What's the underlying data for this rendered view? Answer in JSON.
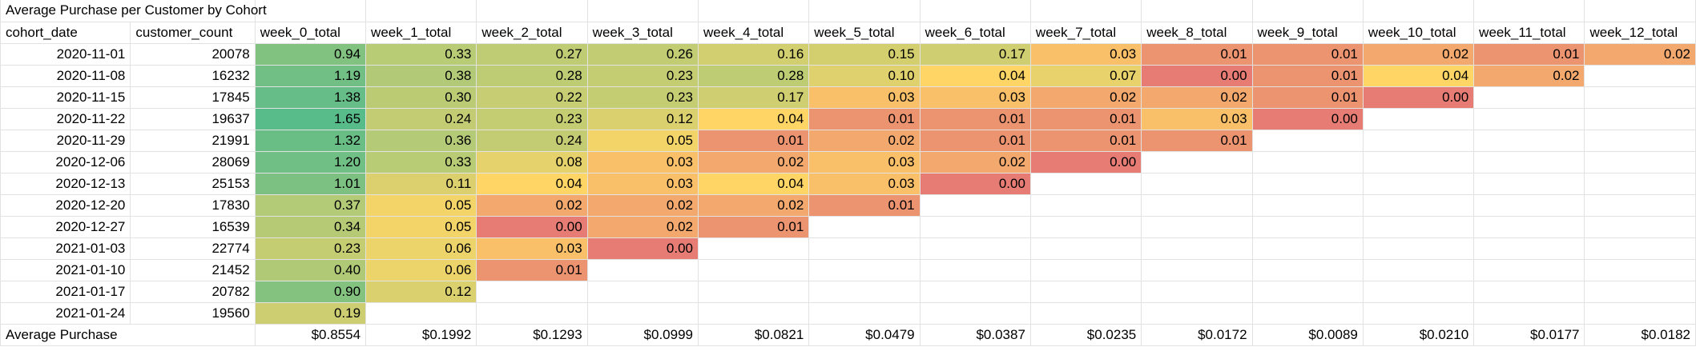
{
  "title": "Average Purchase per Customer by Cohort",
  "columns": [
    "cohort_date",
    "customer_count",
    "week_0_total",
    "week_1_total",
    "week_2_total",
    "week_3_total",
    "week_4_total",
    "week_5_total",
    "week_6_total",
    "week_7_total",
    "week_8_total",
    "week_9_total",
    "week_10_total",
    "week_11_total",
    "week_12_total"
  ],
  "rows": [
    {
      "cohort_date": "2020-11-01",
      "customer_count": "20078",
      "weeks": [
        "0.94",
        "0.33",
        "0.27",
        "0.26",
        "0.16",
        "0.15",
        "0.17",
        "0.03",
        "0.01",
        "0.01",
        "0.02",
        "0.01",
        "0.02"
      ]
    },
    {
      "cohort_date": "2020-11-08",
      "customer_count": "16232",
      "weeks": [
        "1.19",
        "0.38",
        "0.28",
        "0.23",
        "0.28",
        "0.10",
        "0.04",
        "0.07",
        "0.00",
        "0.01",
        "0.04",
        "0.02"
      ]
    },
    {
      "cohort_date": "2020-11-15",
      "customer_count": "17845",
      "weeks": [
        "1.38",
        "0.30",
        "0.22",
        "0.23",
        "0.17",
        "0.03",
        "0.03",
        "0.02",
        "0.02",
        "0.01",
        "0.00"
      ]
    },
    {
      "cohort_date": "2020-11-22",
      "customer_count": "19637",
      "weeks": [
        "1.65",
        "0.24",
        "0.23",
        "0.12",
        "0.04",
        "0.01",
        "0.01",
        "0.01",
        "0.03",
        "0.00"
      ]
    },
    {
      "cohort_date": "2020-11-29",
      "customer_count": "21991",
      "weeks": [
        "1.32",
        "0.36",
        "0.24",
        "0.05",
        "0.01",
        "0.02",
        "0.01",
        "0.01",
        "0.01"
      ]
    },
    {
      "cohort_date": "2020-12-06",
      "customer_count": "28069",
      "weeks": [
        "1.20",
        "0.33",
        "0.08",
        "0.03",
        "0.02",
        "0.03",
        "0.02",
        "0.00"
      ]
    },
    {
      "cohort_date": "2020-12-13",
      "customer_count": "25153",
      "weeks": [
        "1.01",
        "0.11",
        "0.04",
        "0.03",
        "0.04",
        "0.03",
        "0.00"
      ]
    },
    {
      "cohort_date": "2020-12-20",
      "customer_count": "17830",
      "weeks": [
        "0.37",
        "0.05",
        "0.02",
        "0.02",
        "0.02",
        "0.01"
      ]
    },
    {
      "cohort_date": "2020-12-27",
      "customer_count": "16539",
      "weeks": [
        "0.34",
        "0.05",
        "0.00",
        "0.02",
        "0.01"
      ]
    },
    {
      "cohort_date": "2021-01-03",
      "customer_count": "22774",
      "weeks": [
        "0.23",
        "0.06",
        "0.03",
        "0.00"
      ]
    },
    {
      "cohort_date": "2021-01-10",
      "customer_count": "21452",
      "weeks": [
        "0.40",
        "0.06",
        "0.01"
      ]
    },
    {
      "cohort_date": "2021-01-17",
      "customer_count": "20782",
      "weeks": [
        "0.90",
        "0.12"
      ]
    },
    {
      "cohort_date": "2021-01-24",
      "customer_count": "19560",
      "weeks": [
        "0.19"
      ]
    }
  ],
  "average": {
    "label": "Average Purchase",
    "values": [
      "$0.8554",
      "$0.1992",
      "$0.1293",
      "$0.0999",
      "$0.0821",
      "$0.0479",
      "$0.0387",
      "$0.0235",
      "$0.0172",
      "$0.0089",
      "$0.0210",
      "$0.0177",
      "$0.0182"
    ]
  }
}
